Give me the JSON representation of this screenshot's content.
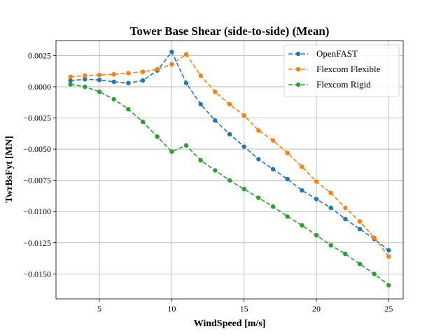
{
  "chart_data": {
    "type": "line",
    "title": "Tower Base Shear (side-to-side) (Mean)",
    "xlabel": "WindSpeed [m/s]",
    "ylabel": "TwrBsFyt [MN]",
    "xlim": [
      2.0,
      26.0
    ],
    "ylim": [
      -0.017,
      0.0037
    ],
    "xticks": [
      5,
      10,
      15,
      20,
      25
    ],
    "yticks": [
      0.0025,
      0.0,
      -0.0025,
      -0.005,
      -0.0075,
      -0.01,
      -0.0125,
      -0.015
    ],
    "ytick_labels": [
      "0.0025",
      "0.0000",
      "−0.0025",
      "−0.0050",
      "−0.0075",
      "−0.0100",
      "−0.0125",
      "−0.0150"
    ],
    "grid": true,
    "legend_position": "top-right",
    "x": [
      3,
      4,
      5,
      6,
      7,
      8,
      9,
      10,
      11,
      12,
      13,
      14,
      15,
      16,
      17,
      18,
      19,
      20,
      21,
      22,
      23,
      24,
      25
    ],
    "series": [
      {
        "name": "OpenFAST",
        "color": "#1f77b4",
        "values": [
          0.0005,
          0.0006,
          0.00055,
          0.0004,
          0.0003,
          0.0005,
          0.0013,
          0.0028,
          0.0003,
          -0.0014,
          -0.0027,
          -0.0038,
          -0.0048,
          -0.0058,
          -0.0066,
          -0.0074,
          -0.0083,
          -0.009,
          -0.0097,
          -0.0106,
          -0.0114,
          -0.0122,
          -0.0131
        ]
      },
      {
        "name": "Flexcom Flexible",
        "color": "#ff7f0e",
        "values": [
          0.0008,
          0.0009,
          0.00095,
          0.001,
          0.0011,
          0.0012,
          0.0014,
          0.0018,
          0.0026,
          0.0009,
          -0.0004,
          -0.0014,
          -0.0023,
          -0.0035,
          -0.0043,
          -0.0053,
          -0.0064,
          -0.0076,
          -0.0085,
          -0.0097,
          -0.0108,
          -0.0121,
          -0.0136
        ]
      },
      {
        "name": "Flexcom Rigid",
        "color": "#2ca02c",
        "values": [
          0.0002,
          0.0,
          -0.0004,
          -0.001,
          -0.0018,
          -0.0028,
          -0.004,
          -0.0052,
          -0.0047,
          -0.0059,
          -0.0067,
          -0.0075,
          -0.0082,
          -0.0089,
          -0.0096,
          -0.0104,
          -0.0111,
          -0.0119,
          -0.0127,
          -0.0134,
          -0.0142,
          -0.015,
          -0.0159
        ]
      }
    ]
  }
}
